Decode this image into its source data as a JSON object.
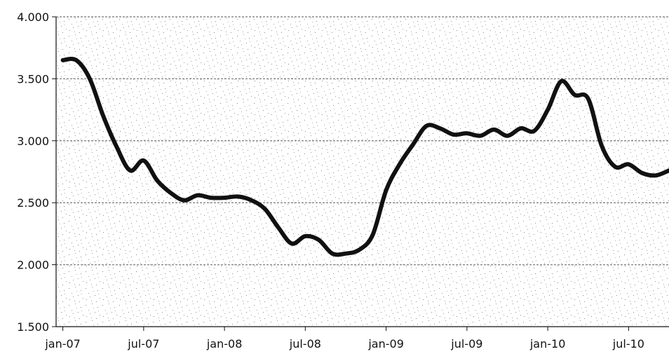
{
  "chart_data": {
    "type": "line",
    "title": "",
    "xlabel": "",
    "ylabel": "",
    "ylim": [
      1500,
      4000
    ],
    "yticks": [
      1500,
      2000,
      2500,
      3000,
      3500,
      4000
    ],
    "ytick_labels": [
      "1.500",
      "2.000",
      "2.500",
      "3.000",
      "3.500",
      "4.000"
    ],
    "xtick_labels": [
      "jan-07",
      "jul-07",
      "jan-08",
      "jul-08",
      "jan-09",
      "jul-09",
      "jan-10",
      "jul-10"
    ],
    "grid": true,
    "legend": "none",
    "line_color": "#111111",
    "x": [
      "2007-01",
      "2007-02",
      "2007-03",
      "2007-04",
      "2007-05",
      "2007-06",
      "2007-07",
      "2007-08",
      "2007-09",
      "2007-10",
      "2007-11",
      "2007-12",
      "2008-01",
      "2008-02",
      "2008-03",
      "2008-04",
      "2008-05",
      "2008-06",
      "2008-07",
      "2008-08",
      "2008-09",
      "2008-10",
      "2008-11",
      "2008-12",
      "2009-01",
      "2009-02",
      "2009-03",
      "2009-04",
      "2009-05",
      "2009-06",
      "2009-07",
      "2009-08",
      "2009-09",
      "2009-10",
      "2009-11",
      "2009-12",
      "2010-01",
      "2010-02",
      "2010-03",
      "2010-04",
      "2010-05",
      "2010-06",
      "2010-07",
      "2010-08",
      "2010-09",
      "2010-10"
    ],
    "series": [
      {
        "values": [
          3650,
          3650,
          3500,
          3200,
          2950,
          2760,
          2840,
          2680,
          2580,
          2520,
          2560,
          2540,
          2540,
          2550,
          2520,
          2450,
          2300,
          2170,
          2230,
          2200,
          2090,
          2090,
          2120,
          2240,
          2600,
          2810,
          2970,
          3120,
          3100,
          3050,
          3060,
          3040,
          3090,
          3040,
          3100,
          3080,
          3250,
          3480,
          3370,
          3340,
          2960,
          2790,
          2810,
          2740,
          2720,
          2760
        ]
      }
    ]
  }
}
